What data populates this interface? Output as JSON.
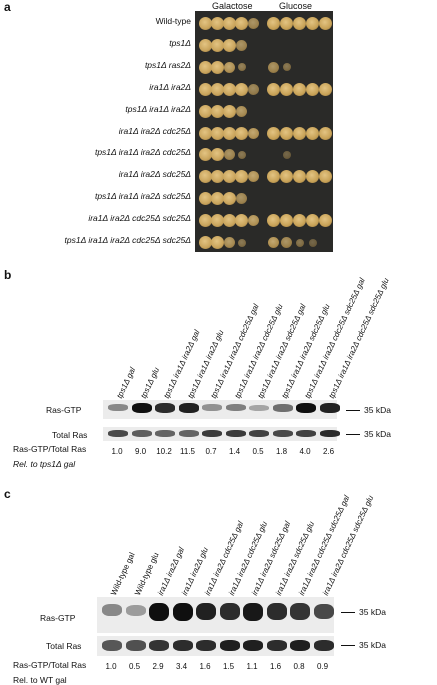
{
  "panel_a": {
    "label": "a",
    "col_galactose": "Galactose",
    "col_glucose": "Glucose",
    "strains": [
      {
        "name": "Wild-type",
        "italic": false,
        "gal": [
          1,
          1,
          1,
          1,
          0.6
        ],
        "glu": [
          1,
          1,
          1,
          1,
          1
        ]
      },
      {
        "name": "tps1Δ",
        "italic": true,
        "gal": [
          1,
          1,
          1,
          0.6,
          0
        ],
        "glu": [
          0,
          0,
          0,
          0,
          0
        ]
      },
      {
        "name": "tps1Δ ras2Δ",
        "italic": true,
        "gal": [
          1,
          1,
          0.8,
          0.4,
          0
        ],
        "glu": [
          0.6,
          0.3,
          0,
          0,
          0
        ]
      },
      {
        "name": "ira1Δ ira2Δ",
        "italic": true,
        "gal": [
          1,
          1,
          1,
          1,
          0.5
        ],
        "glu": [
          1,
          1,
          1,
          1,
          1
        ]
      },
      {
        "name": "tps1Δ ira1Δ ira2Δ",
        "italic": true,
        "gal": [
          1,
          1,
          1,
          0.7,
          0
        ],
        "glu": [
          0,
          0,
          0,
          0,
          0
        ]
      },
      {
        "name": "ira1Δ ira2Δ cdc25Δ",
        "italic": true,
        "gal": [
          1,
          1,
          1,
          1,
          0.8
        ],
        "glu": [
          1,
          1,
          1,
          1,
          1
        ]
      },
      {
        "name": "tps1Δ ira1Δ ira2Δ cdc25Δ",
        "italic": true,
        "gal": [
          1,
          1,
          0.6,
          0.3,
          0
        ],
        "glu": [
          0,
          0.1,
          0,
          0,
          0
        ]
      },
      {
        "name": "ira1Δ ira2Δ sdc25Δ",
        "italic": true,
        "gal": [
          1,
          1,
          1,
          1,
          0.8
        ],
        "glu": [
          1,
          1,
          1,
          1,
          1
        ]
      },
      {
        "name": "tps1Δ ira1Δ ira2Δ sdc25Δ",
        "italic": true,
        "gal": [
          1,
          1,
          1,
          0.6,
          0
        ],
        "glu": [
          0,
          0,
          0,
          0,
          0
        ]
      },
      {
        "name": "ira1Δ ira2Δ cdc25Δ sdc25Δ",
        "italic": true,
        "gal": [
          1,
          1,
          1,
          1,
          0.8
        ],
        "glu": [
          1,
          1,
          1,
          1,
          1
        ]
      },
      {
        "name": "tps1Δ ira1Δ ira2Δ cdc25Δ sdc25Δ",
        "italic": true,
        "gal": [
          1,
          1,
          0.7,
          0.3,
          0
        ],
        "glu": [
          0.8,
          0.6,
          0.3,
          0.1,
          0
        ]
      }
    ]
  },
  "panel_b": {
    "label": "b",
    "lanes": [
      "tps1Δ gal",
      "tps1Δ glu",
      "tps1Δ ira1Δ ira2Δ gal",
      "tps1Δ ira1Δ ira2Δ glu",
      "tps1Δ ira1Δ ira2Δ cdc25Δ gal",
      "tps1Δ ira1Δ ira2Δ cdc25Δ glu",
      "tps1Δ ira1Δ ira2Δ sdc25Δ gal",
      "tps1Δ ira1Δ ira2Δ sdc25Δ glu",
      "tps1Δ ira1Δ ira2Δ cdc25Δ sdc25Δ gal",
      "tps1Δ ira1Δ ira2Δ cdc25Δ sdc25Δ glu"
    ],
    "row_ras_gtp": "Ras-GTP",
    "row_total_ras": "Total Ras",
    "row_ratio": "Ras-GTP/Total Ras",
    "row_rel": "Rel. to tps1Δ gal",
    "kda": "35 kDa",
    "ras_gtp_intensity": [
      0.35,
      1.0,
      0.85,
      0.9,
      0.3,
      0.4,
      0.2,
      0.5,
      1.0,
      0.9
    ],
    "total_intensity": [
      0.7,
      0.55,
      0.5,
      0.5,
      0.8,
      0.8,
      0.75,
      0.7,
      0.75,
      0.9
    ],
    "ratios": [
      "1.0",
      "9.0",
      "10.2",
      "11.5",
      "0.7",
      "1.4",
      "0.5",
      "1.8",
      "4.0",
      "2.6"
    ]
  },
  "panel_c": {
    "label": "c",
    "lanes": [
      "Wild-type gal",
      "Wild-type glu",
      "ira1Δ ira2Δ gal",
      "ira1Δ ira2Δ glu",
      "ira1Δ ira2Δ cdc25Δ gal",
      "ira1Δ ira2Δ cdc25Δ glu",
      "ira1Δ ira2Δ sdc25Δ gal",
      "ira1Δ ira2Δ sdc25Δ glu",
      "ira1Δ ira2Δ cdc25Δ sdc25Δ gal",
      "ira1Δ ira2Δ cdc25Δ sdc25Δ glu"
    ],
    "row_ras_gtp": "Ras-GTP",
    "row_total_ras": "Total Ras",
    "row_ratio": "Ras-GTP/Total Ras",
    "row_rel": "Rel. to WT gal",
    "kda": "35 kDa",
    "ras_gtp_intensity": [
      0.35,
      0.25,
      1.0,
      1.0,
      0.9,
      0.85,
      0.95,
      0.85,
      0.8,
      0.7
    ],
    "total_intensity": [
      0.6,
      0.65,
      0.85,
      0.9,
      0.9,
      1.0,
      1.0,
      0.9,
      1.0,
      0.9
    ],
    "ratios": [
      "1.0",
      "0.5",
      "2.9",
      "3.4",
      "1.6",
      "1.5",
      "1.1",
      "1.6",
      "0.8",
      "0.9"
    ]
  }
}
